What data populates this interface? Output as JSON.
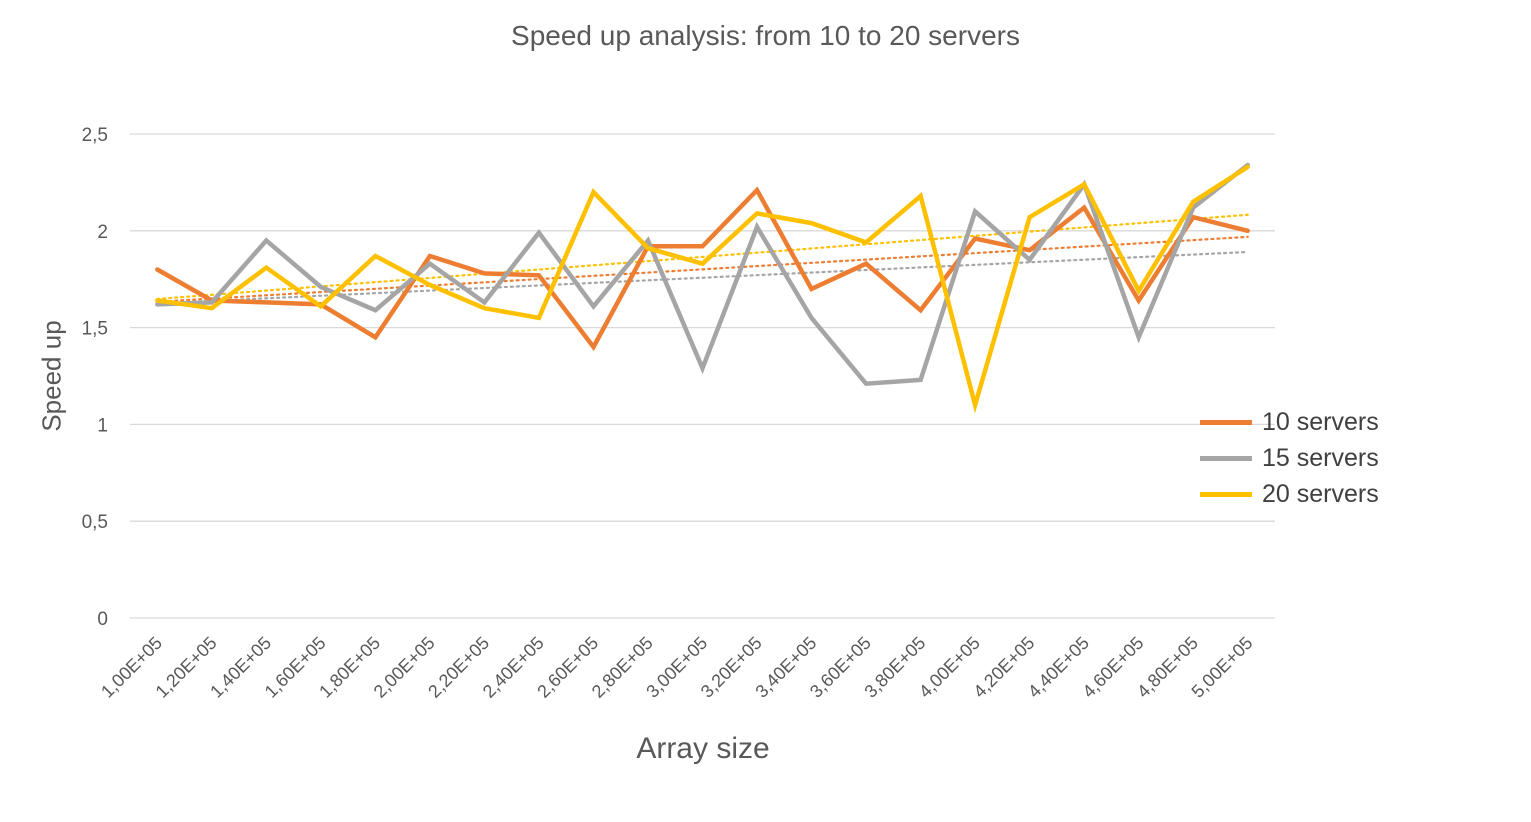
{
  "chart_data": {
    "type": "line",
    "title": "Speed up analysis: from 10 to 20 servers",
    "xlabel": "Array size",
    "ylabel": "Speed up",
    "categories": [
      "1,00E+05",
      "1,20E+05",
      "1,40E+05",
      "1,60E+05",
      "1,80E+05",
      "2,00E+05",
      "2,20E+05",
      "2,40E+05",
      "2,60E+05",
      "2,80E+05",
      "3,00E+05",
      "3,20E+05",
      "3,40E+05",
      "3,60E+05",
      "3,80E+05",
      "4,00E+05",
      "4,20E+05",
      "4,40E+05",
      "4,60E+05",
      "4,80E+05",
      "5,00E+05"
    ],
    "yticks": [
      "0",
      "0,5",
      "1",
      "1,5",
      "2",
      "2,5"
    ],
    "ylim": [
      0,
      2.5
    ],
    "grid": true,
    "legend_position": "right",
    "trendlines": "linear, dotted",
    "series": [
      {
        "name": "10 servers",
        "color": "#ED7D31",
        "values": [
          1.8,
          1.64,
          1.63,
          1.62,
          1.45,
          1.87,
          1.78,
          1.77,
          1.4,
          1.92,
          1.92,
          2.21,
          1.7,
          1.83,
          1.59,
          1.96,
          1.9,
          2.12,
          1.64,
          2.07,
          2.0
        ]
      },
      {
        "name": "15 servers",
        "color": "#A5A5A5",
        "values": [
          1.62,
          1.63,
          1.95,
          1.71,
          1.59,
          1.83,
          1.63,
          1.99,
          1.61,
          1.95,
          1.29,
          2.02,
          1.55,
          1.21,
          1.23,
          2.1,
          1.85,
          2.24,
          1.45,
          2.12,
          2.34
        ]
      },
      {
        "name": "20 servers",
        "color": "#FFC000",
        "values": [
          1.64,
          1.6,
          1.81,
          1.61,
          1.87,
          1.72,
          1.6,
          1.55,
          2.2,
          1.91,
          1.83,
          2.09,
          2.04,
          1.94,
          2.18,
          1.1,
          2.07,
          2.24,
          1.69,
          2.15,
          2.33
        ]
      }
    ]
  }
}
